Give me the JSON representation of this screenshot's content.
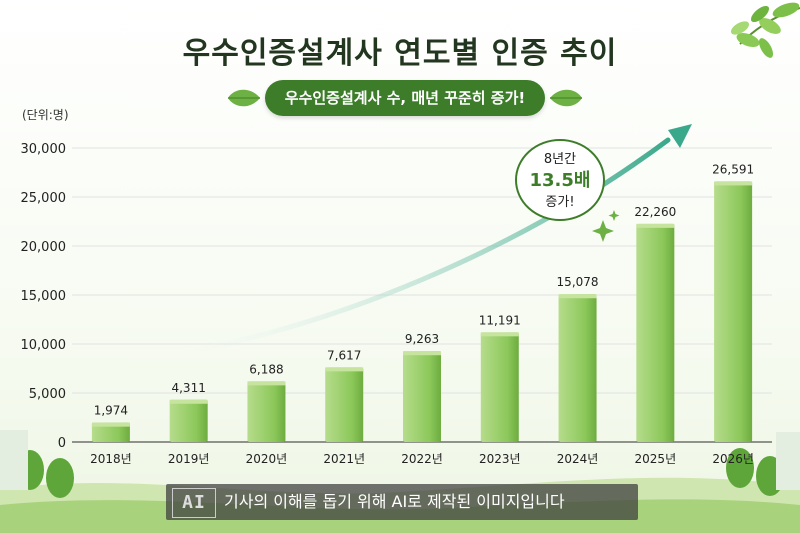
{
  "header": {
    "title": "우수인증설계사 연도별 인증 추이",
    "subtitle": "우수인증설계사 수, 매년 꾸준히 증가!"
  },
  "unit_label": "(단위:명)",
  "callout": {
    "line1": "8년간",
    "line2": "13.5배",
    "line3": "증가!"
  },
  "watermark": {
    "logo": "AI",
    "text": "기사의 이해를 돕기 위해 AI로 제작된 이미지입니다"
  },
  "colors": {
    "bar": "#8cc85a",
    "bar_light": "#b6dc8c",
    "accent_dark": "#3d7d2a",
    "arrow": "#3aa88a"
  },
  "chart_data": {
    "type": "bar",
    "title": "우수인증설계사 연도별 인증 추이",
    "categories": [
      "2018년",
      "2019년",
      "2020년",
      "2021년",
      "2022년",
      "2023년",
      "2024년",
      "2025년",
      "2026년"
    ],
    "values": [
      1974,
      4311,
      6188,
      7617,
      9263,
      11191,
      15078,
      22260,
      26591
    ],
    "value_labels": [
      "1,974",
      "4,311",
      "6,188",
      "7,617",
      "9,263",
      "11,191",
      "15,078",
      "22,260",
      "26,591"
    ],
    "ylim": [
      0,
      30000
    ],
    "yticks": [
      0,
      5000,
      10000,
      15000,
      20000,
      25000,
      30000
    ],
    "ytick_labels": [
      "0",
      "5,000",
      "10,000",
      "15,000",
      "20,000",
      "25,000",
      "30,000"
    ],
    "grid": true,
    "ylabel": "(단위:명)"
  }
}
